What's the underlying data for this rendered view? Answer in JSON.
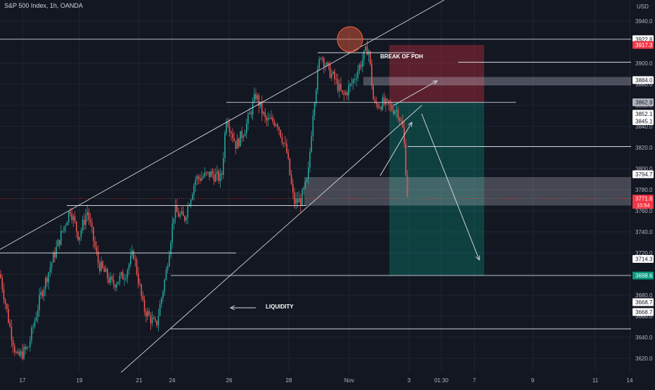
{
  "title": "S&P 500 Index, 1h, OANDA",
  "currency": "USD",
  "colors": {
    "background": "#131722",
    "grid": "#1f2433",
    "text": "#b2b5be",
    "candle_up": "#26a69a",
    "candle_down": "#ef5350",
    "line": "#d1d4dc",
    "stop_zone": "rgba(242,54,69,0.32)",
    "target_zone": "rgba(8,153,129,0.32)",
    "target_tag": "#089981",
    "stop_tag": "#f23645",
    "marker": "#e0593b"
  },
  "chart_data": {
    "type": "candlestick",
    "title": "S&P 500 Index, 1h, OANDA",
    "ylim": [
      3612,
      3952
    ],
    "y_ticks": [
      "3940.0",
      "3900.0",
      "3880.0",
      "3860.0",
      "3840.0",
      "3820.0",
      "3800.0",
      "3780.0",
      "3760.0",
      "3740.0",
      "3720.0",
      "3700.0",
      "3680.0",
      "3660.0",
      "3640.0",
      "3620.0"
    ],
    "x_ticks": [
      "17",
      "19",
      "21",
      "24",
      "26",
      "28",
      "Nov",
      "3",
      "01:30",
      "7",
      "9",
      "11",
      "14"
    ],
    "price_tags": [
      {
        "label": "3922.8",
        "value": 3922.8,
        "style": "white"
      },
      {
        "label": "3917.3",
        "value": 3917.3,
        "style": "red"
      },
      {
        "label": "3884.0",
        "value": 3884.0,
        "style": "white"
      },
      {
        "label": "3862.9",
        "value": 3862.9,
        "style": "gray"
      },
      {
        "label": "3852.1",
        "value": 3852.1,
        "style": "white"
      },
      {
        "label": "3845.1",
        "value": 3845.1,
        "style": "white"
      },
      {
        "label": "3794.7",
        "value": 3794.7,
        "style": "white"
      },
      {
        "label": "3771.6",
        "value": 3771.6,
        "style": "red",
        "sub": "10:54"
      },
      {
        "label": "3714.3",
        "value": 3714.3,
        "style": "white"
      },
      {
        "label": "3698.6",
        "value": 3698.6,
        "style": "green"
      },
      {
        "label": "3668.7",
        "value": 3668.7,
        "style": "white",
        "offset": -7
      },
      {
        "label": "3668.7",
        "value": 3668.7,
        "style": "white",
        "offset": 7
      }
    ],
    "annotations": [
      {
        "text": "BREAK OF PDH",
        "x": "Nov",
        "y": 3911
      },
      {
        "text": "LIQUIDITY",
        "x": "24",
        "y": 3678
      }
    ],
    "levels": [
      3922.8,
      3862.9,
      3821,
      3780,
      3765,
      3720,
      3698.6,
      3648,
      3910,
      3901,
      3884,
      3788
    ]
  }
}
